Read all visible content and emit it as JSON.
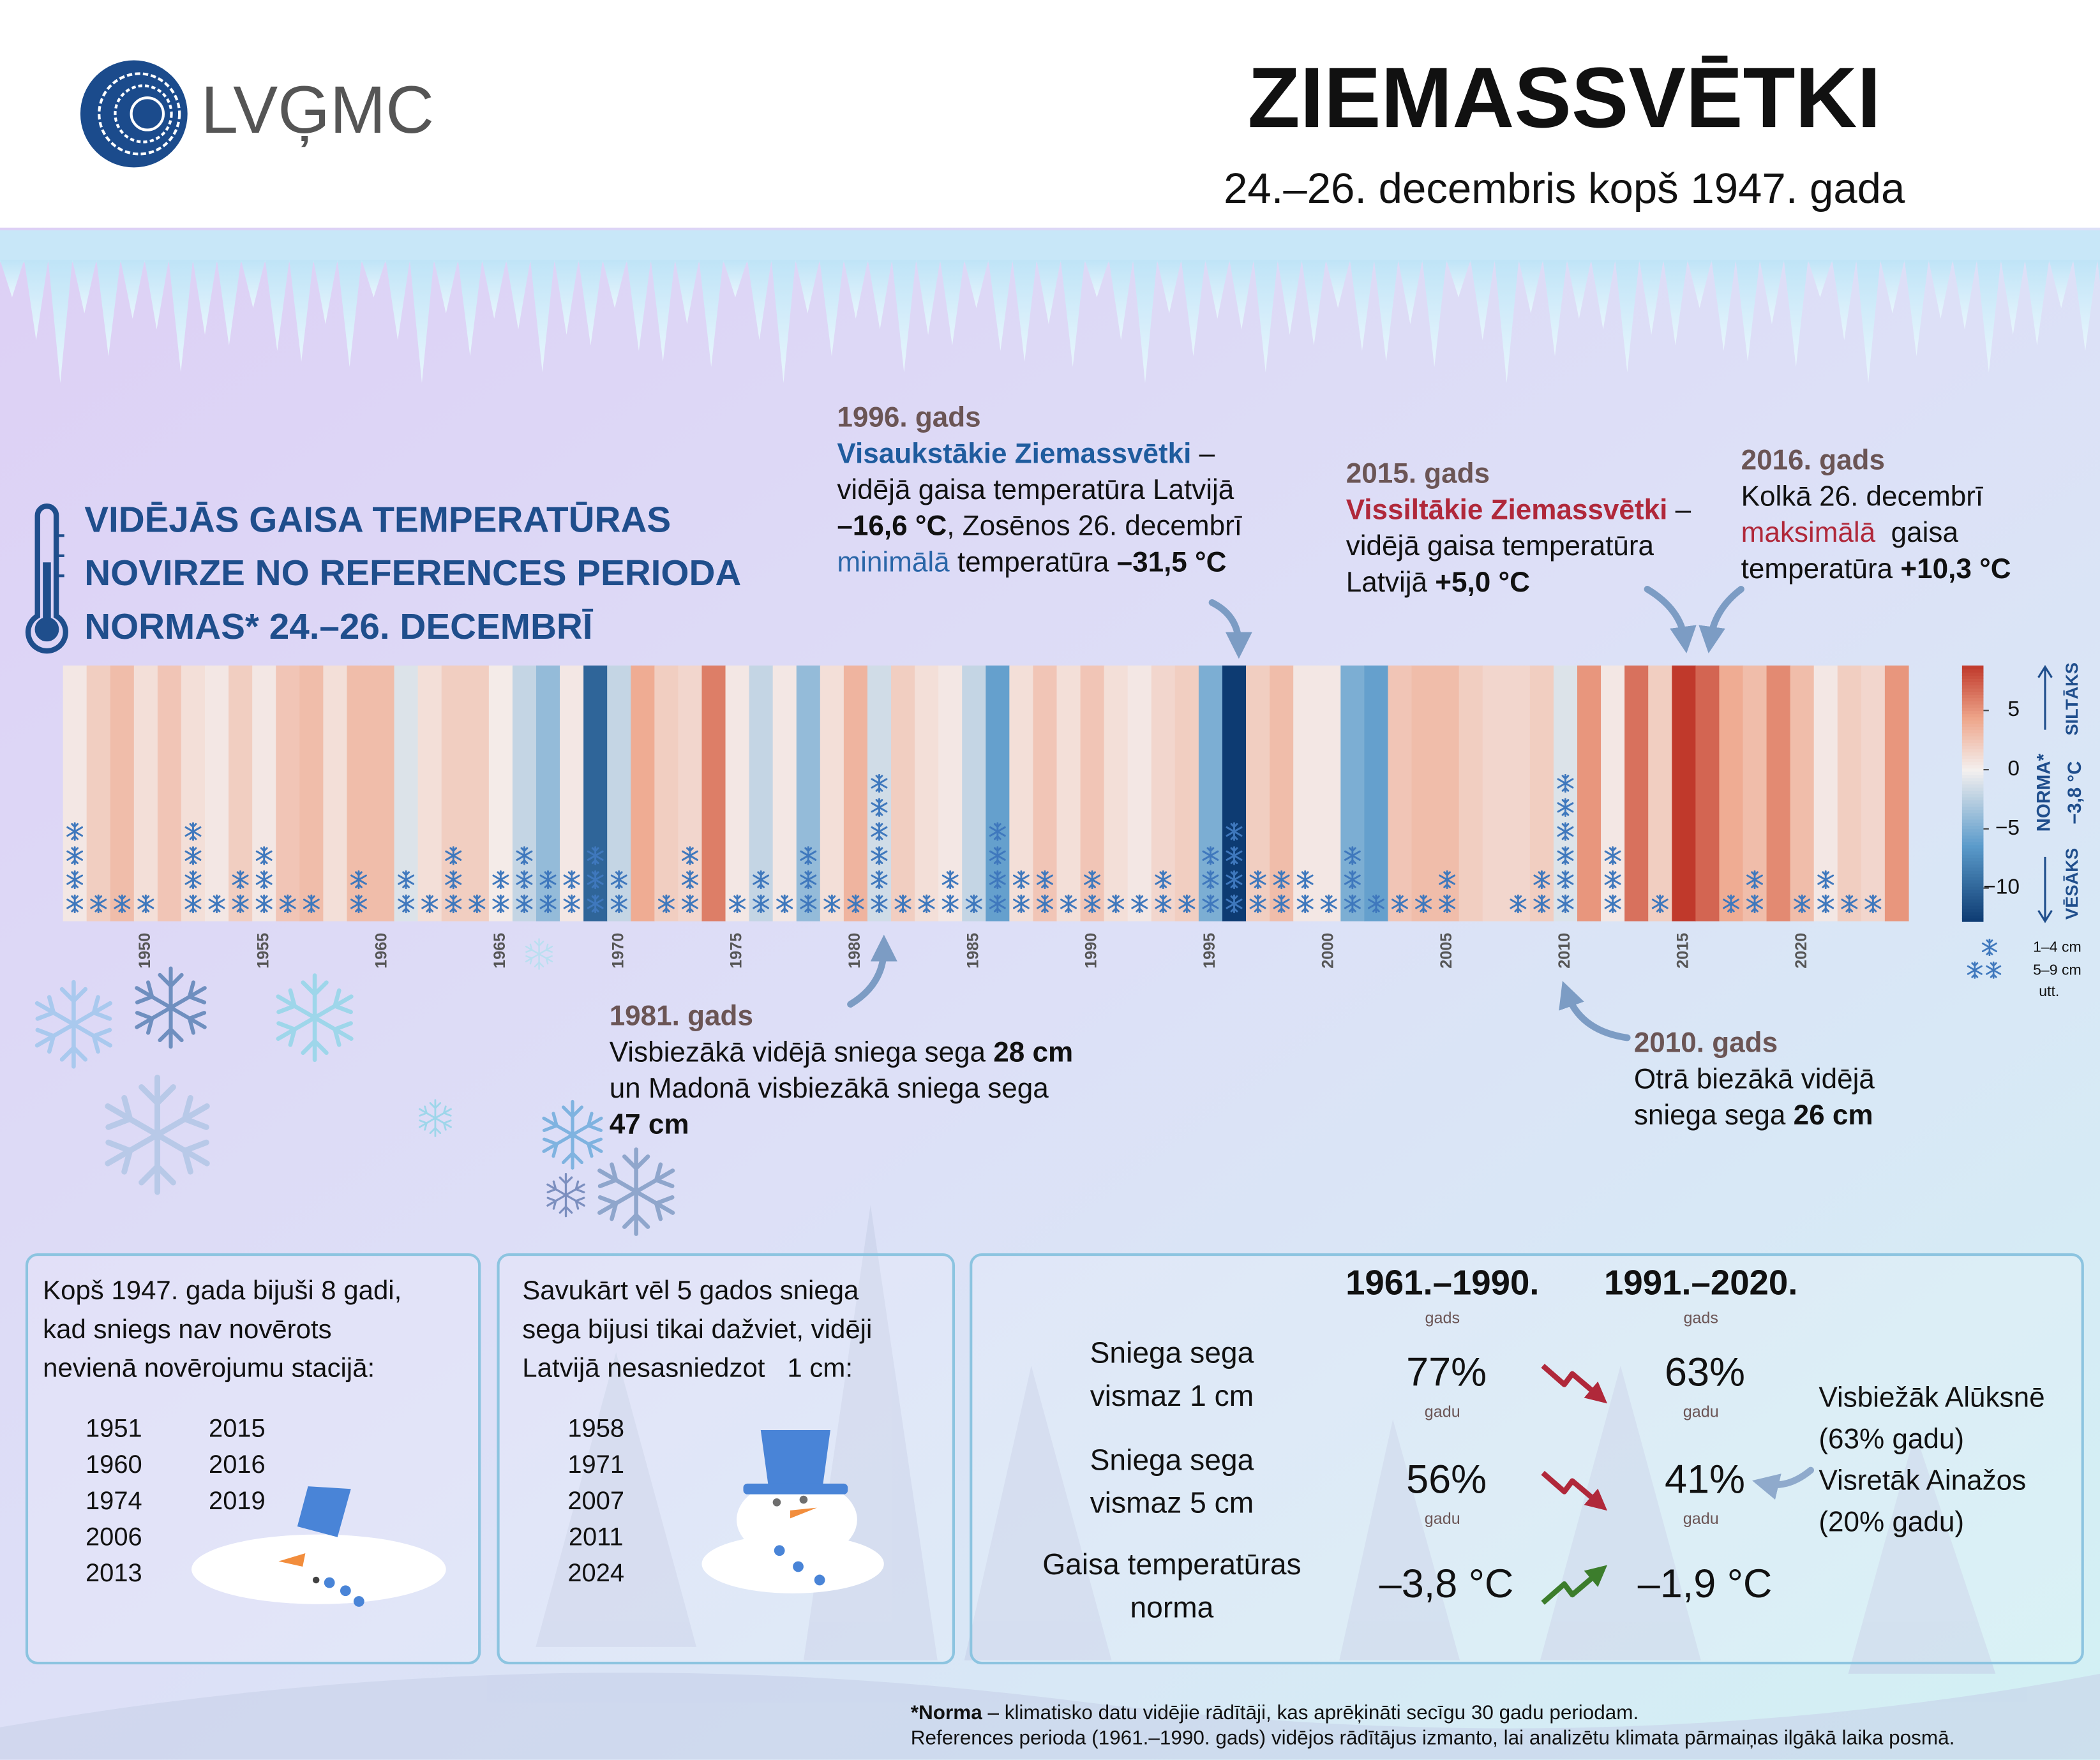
{
  "header": {
    "logo": "LVĢMC",
    "title": "ZIEMASSVĒTKI",
    "subtitle": "24.–26. decembris kopš 1947. gada"
  },
  "chart_data": {
    "type": "stripes",
    "title": [
      "VIDĒJĀS GAISA TEMPERATŪRAS",
      "NOVIRZE NO REFERENCES PERIODA",
      "NORMAS* 24.–26. DECEMBRĪ"
    ],
    "x": [
      1947,
      1948,
      1949,
      1950,
      1951,
      1952,
      1953,
      1954,
      1955,
      1956,
      1957,
      1958,
      1959,
      1960,
      1961,
      1962,
      1963,
      1964,
      1965,
      1966,
      1967,
      1968,
      1969,
      1970,
      1971,
      1972,
      1973,
      1974,
      1975,
      1976,
      1977,
      1978,
      1979,
      1980,
      1981,
      1982,
      1983,
      1984,
      1985,
      1986,
      1987,
      1988,
      1989,
      1990,
      1991,
      1992,
      1993,
      1994,
      1995,
      1996,
      1997,
      1998,
      1999,
      2000,
      2001,
      2002,
      2003,
      2004,
      2005,
      2006,
      2007,
      2008,
      2009,
      2010,
      2011,
      2012,
      2013,
      2014,
      2015,
      2016,
      2017,
      2018,
      2019,
      2020,
      2021,
      2022,
      2023,
      2024
    ],
    "values": [
      0.5,
      2,
      3,
      1,
      2.5,
      1,
      0.5,
      2,
      0.5,
      2.5,
      3,
      1,
      3,
      3,
      -1,
      1,
      2,
      2,
      0.3,
      -2,
      -4,
      0.5,
      -10,
      -2,
      4,
      2,
      1.5,
      6,
      0.5,
      -2,
      0.5,
      -4,
      1,
      3.5,
      -1.5,
      2,
      1,
      0.5,
      -2,
      -6,
      1,
      2.5,
      1,
      2.5,
      1,
      0.5,
      1.5,
      2,
      -5,
      -12.8,
      2,
      3,
      0.5,
      0.5,
      -5,
      -6,
      2.5,
      3,
      3,
      2,
      1.5,
      1.5,
      2,
      -1,
      5,
      0.5,
      6.5,
      2,
      8.8,
      7,
      4,
      3,
      5.5,
      3,
      0.5,
      2,
      1.5,
      5
    ],
    "snow_flakes": [
      4,
      1,
      1,
      1,
      0,
      4,
      1,
      2,
      3,
      1,
      1,
      0,
      2,
      0,
      2,
      1,
      3,
      1,
      2,
      3,
      2,
      2,
      3,
      2,
      0,
      1,
      3,
      0,
      1,
      2,
      1,
      3,
      1,
      1,
      6,
      1,
      1,
      2,
      1,
      4,
      2,
      2,
      1,
      2,
      1,
      1,
      2,
      1,
      3,
      4,
      2,
      2,
      2,
      1,
      3,
      1,
      1,
      1,
      2,
      0,
      0,
      1,
      2,
      6,
      0,
      3,
      0,
      1,
      0,
      0,
      1,
      2,
      0,
      1,
      2,
      1,
      1,
      0
    ],
    "xlim": [
      1946.5,
      2024.5
    ],
    "xticks": [
      1950,
      1955,
      1960,
      1965,
      1970,
      1975,
      1980,
      1985,
      1990,
      1995,
      2000,
      2005,
      2010,
      2015,
      2020
    ],
    "ylim": [
      -12.8,
      8.8
    ],
    "yticks": [
      5,
      0,
      {
        "value": -5,
        "label": "−5"
      },
      {
        "value": -10,
        "label": "−10"
      }
    ],
    "colors": [
      "#0d3b72",
      "#5b9bcb",
      "#f4f0ef",
      "#eea58a",
      "#c0392b"
    ],
    "colorbar": {
      "warm": "SILTĀKS",
      "norm": "NORMA*",
      "norm_value": "−3,8 °C",
      "cold": "VĒSĀKS"
    },
    "snow_legend": [
      "1–4 cm",
      "5–9 cm",
      "utt."
    ]
  },
  "annotations": {
    "y1996": {
      "title": "1996. gads",
      "lines": [
        [
          "Visaukstākie Ziemassvētki",
          " –"
        ],
        [
          "vidējā gaisa temperatūra Latvijā"
        ],
        [
          "–16,6 °C",
          ", Zosēnos 26. decembrī"
        ],
        [
          "minimālā",
          " temperatūra ",
          "–31,5 °C"
        ]
      ]
    },
    "y2015": {
      "title": "2015. gads",
      "lines": [
        [
          "Vissiltākie Ziemassvētki",
          " –"
        ],
        [
          "vidējā gaisa temperatūra"
        ],
        [
          "Latvijā ",
          "+5,0 °C"
        ]
      ]
    },
    "y2016": {
      "title": "2016. gads",
      "lines": [
        [
          "Kolkā 26. decembrī"
        ],
        [
          "maksimālā",
          "  gaisa"
        ],
        [
          "temperatūra ",
          "+10,3 °C"
        ]
      ]
    },
    "y1981": {
      "title": "1981. gads",
      "lines": [
        [
          "Visbiezākā vidējā sniega sega ",
          "28 cm"
        ],
        [
          "un Madonā visbiezākā sniega sega"
        ],
        [
          "47 cm"
        ]
      ]
    },
    "y2010": {
      "title": "2010. gads",
      "lines": [
        [
          "Otrā biezākā vidējā"
        ],
        [
          "sniega sega ",
          "26 cm"
        ]
      ]
    }
  },
  "panels": {
    "no_snow": {
      "text": [
        "Kopš 1947. gada bijuši 8 gadi,",
        "kad sniegs nav novērots",
        "nevienā novērojumu stacijā:"
      ],
      "years": [
        "1951",
        "1960",
        "1974",
        "2006",
        "2013",
        "2015",
        "2016",
        "2019"
      ]
    },
    "patchy_snow": {
      "text": [
        "Savukārt vēl 5 gados sniega",
        "sega bijusi tikai dažviet, vidēji",
        "Latvijā nesasniedzot   1 cm:"
      ],
      "years": [
        "1958",
        "1971",
        "2007",
        "2011",
        "2024"
      ]
    },
    "norms": {
      "periods": [
        "1961.–1990.",
        "1991.–2020."
      ],
      "period_unit": "gads",
      "rows": [
        {
          "label": [
            "Sniega sega",
            "vismaz 1 cm"
          ],
          "values": [
            "77%",
            "63%"
          ],
          "unit": "gadu"
        },
        {
          "label": [
            "Sniega sega",
            "vismaz 5 cm"
          ],
          "values": [
            "56%",
            "41%"
          ],
          "unit": "gadu"
        },
        {
          "label": [
            "Gaisa temperatūras",
            "norma"
          ],
          "values": [
            "–3,8 °C",
            "–1,9 °C"
          ]
        }
      ],
      "note": [
        "Visbiežāk Alūksnē",
        "(63% gadu)",
        "Visretāk Ainažos",
        "(20% gadu)"
      ]
    }
  },
  "footnote": [
    [
      "*Norma",
      " – klimatisko datu vidējie rādītāji, kas aprēķināti secīgu 30 gadu periodam."
    ],
    [
      "References perioda (1961.–1990. gads) vidējos rādītājus izmanto, lai analizētu klimata pārmaiņas ilgākā laika posmā."
    ]
  ]
}
